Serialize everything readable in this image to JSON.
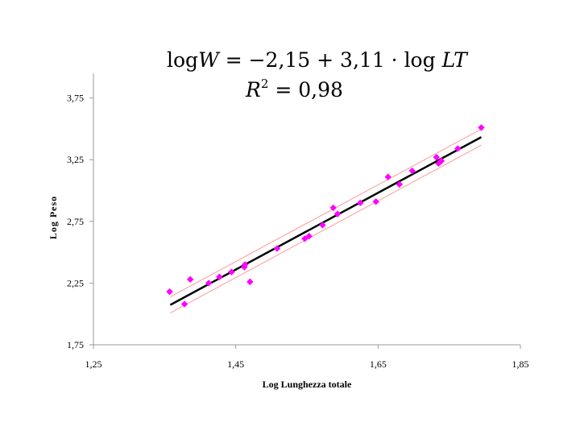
{
  "chart_data": {
    "type": "scatter",
    "title": "",
    "equation": {
      "line1_prefix": "log",
      "line1_var": "W",
      "line1_mid": " = −2,15 + 3,11 · log ",
      "line1_var2": "LT",
      "r2_base": "R",
      "r2_exp": "2",
      "r2_value": " = 0,98"
    },
    "xlabel": "Log Lunghezza totale",
    "ylabel": "Log Peso",
    "xlim": [
      1.25,
      1.85
    ],
    "ylim": [
      1.75,
      3.95
    ],
    "x_ticks": [
      1.25,
      1.45,
      1.65,
      1.85
    ],
    "x_tick_labels": [
      "1,25",
      "1,45",
      "1,65",
      "1,85"
    ],
    "y_ticks": [
      1.75,
      2.25,
      2.75,
      3.25,
      3.75
    ],
    "y_tick_labels": [
      "1,75",
      "2,25",
      "2,75",
      "3,25",
      "3,75"
    ],
    "grid": false,
    "colors": {
      "points": "#ff00ff",
      "fit_line": "#000000",
      "band": "#ff9999",
      "axis": "#999999"
    },
    "fit": {
      "intercept": -2.15,
      "slope": 3.11,
      "x_range": [
        1.358,
        1.795
      ]
    },
    "band_offset": 0.065,
    "points": [
      {
        "x": 1.357,
        "y": 2.18
      },
      {
        "x": 1.378,
        "y": 2.08
      },
      {
        "x": 1.386,
        "y": 2.28
      },
      {
        "x": 1.412,
        "y": 2.25
      },
      {
        "x": 1.427,
        "y": 2.3
      },
      {
        "x": 1.444,
        "y": 2.34
      },
      {
        "x": 1.462,
        "y": 2.38
      },
      {
        "x": 1.463,
        "y": 2.4
      },
      {
        "x": 1.47,
        "y": 2.26
      },
      {
        "x": 1.508,
        "y": 2.53
      },
      {
        "x": 1.547,
        "y": 2.61
      },
      {
        "x": 1.553,
        "y": 2.63
      },
      {
        "x": 1.572,
        "y": 2.72
      },
      {
        "x": 1.587,
        "y": 2.86
      },
      {
        "x": 1.593,
        "y": 2.81
      },
      {
        "x": 1.625,
        "y": 2.9
      },
      {
        "x": 1.647,
        "y": 2.91
      },
      {
        "x": 1.664,
        "y": 3.11
      },
      {
        "x": 1.68,
        "y": 3.05
      },
      {
        "x": 1.698,
        "y": 3.16
      },
      {
        "x": 1.732,
        "y": 3.27
      },
      {
        "x": 1.735,
        "y": 3.22
      },
      {
        "x": 1.739,
        "y": 3.24
      },
      {
        "x": 1.762,
        "y": 3.34
      },
      {
        "x": 1.795,
        "y": 3.51
      }
    ]
  }
}
